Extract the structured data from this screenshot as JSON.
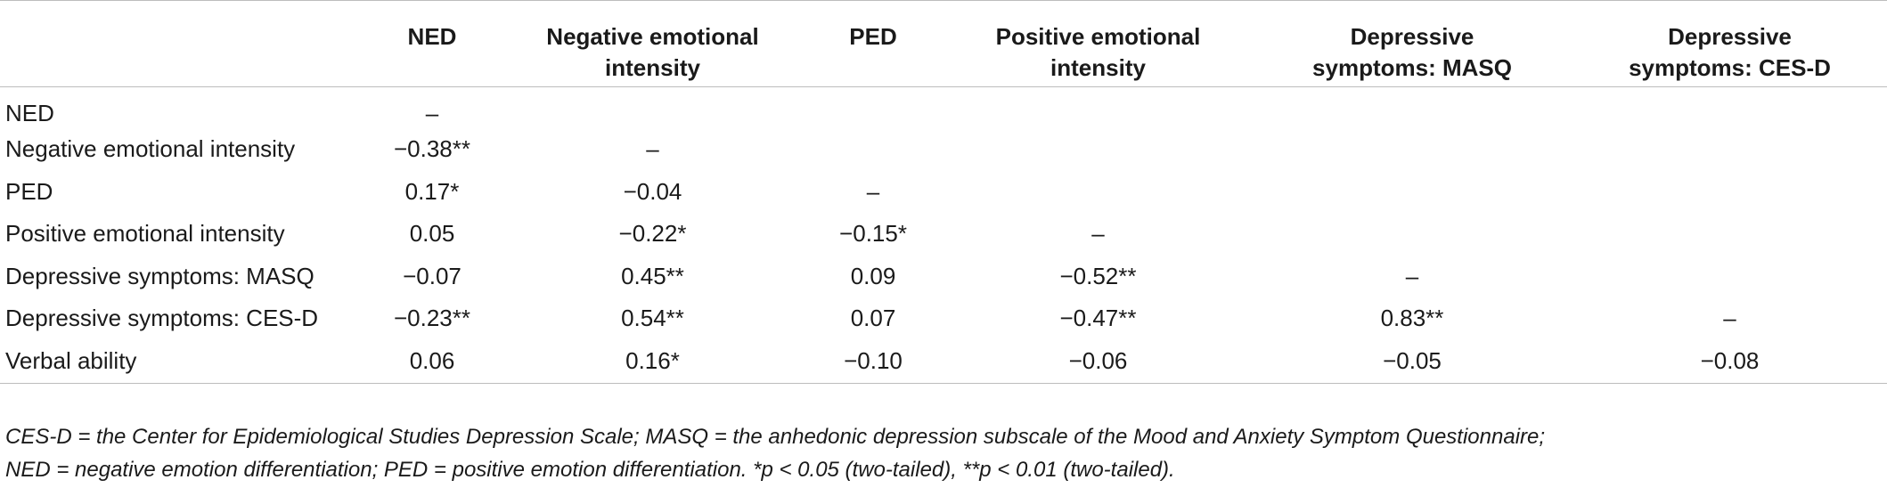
{
  "table": {
    "corner": "",
    "headers": [
      [
        "NED"
      ],
      [
        "Negative emotional",
        "intensity"
      ],
      [
        "PED"
      ],
      [
        "Positive emotional",
        "intensity"
      ],
      [
        "Depressive",
        "symptoms: MASQ"
      ],
      [
        "Depressive",
        "symptoms: CES-D"
      ]
    ],
    "rows": [
      {
        "label": "NED",
        "values": [
          "–",
          "",
          "",
          "",
          "",
          ""
        ]
      },
      {
        "label": "Negative emotional intensity",
        "values": [
          "−0.38**",
          "–",
          "",
          "",
          "",
          ""
        ]
      },
      {
        "label": "PED",
        "values": [
          "0.17*",
          "−0.04",
          "–",
          "",
          "",
          ""
        ]
      },
      {
        "label": "Positive emotional intensity",
        "values": [
          "0.05",
          "−0.22*",
          "−0.15*",
          "–",
          "",
          ""
        ]
      },
      {
        "label": "Depressive symptoms: MASQ",
        "values": [
          "−0.07",
          "0.45**",
          "0.09",
          "−0.52**",
          "–",
          ""
        ]
      },
      {
        "label": "Depressive symptoms: CES-D",
        "values": [
          "−0.23**",
          "0.54**",
          "0.07",
          "−0.47**",
          "0.83**",
          "–"
        ]
      },
      {
        "label": "Verbal ability",
        "values": [
          "0.06",
          "0.16*",
          "−0.10",
          "−0.06",
          "−0.05",
          "−0.08"
        ]
      }
    ]
  },
  "note": {
    "line1": "CES-D = the Center for Epidemiological Studies Depression Scale; MASQ = the anhedonic depression subscale of the Mood and Anxiety Symptom Questionnaire;",
    "line2": "NED = negative emotion differentiation; PED = positive emotion differentiation. *p < 0.05 (two-tailed), **p < 0.01 (two-tailed)."
  }
}
